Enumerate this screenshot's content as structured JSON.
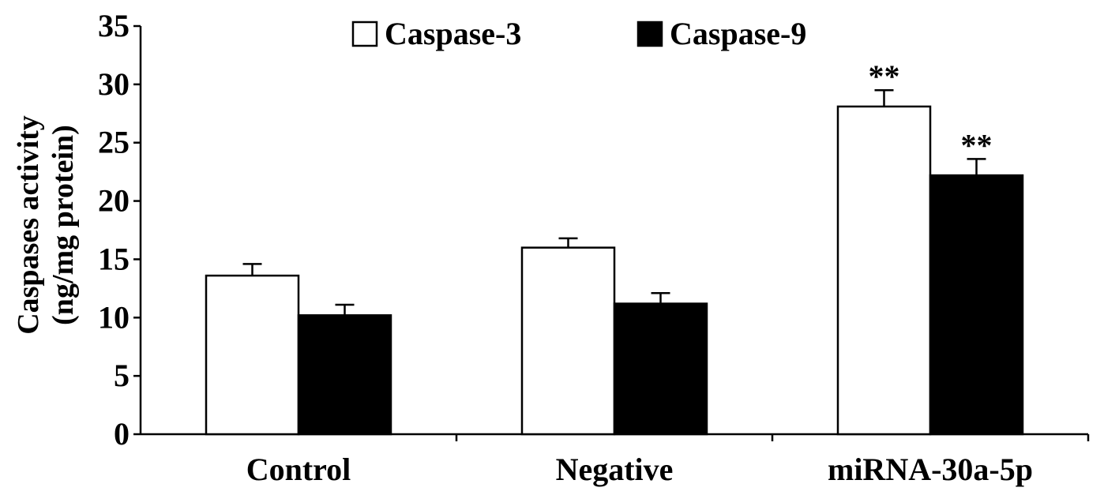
{
  "chart_data": {
    "type": "bar",
    "categories": [
      "Control",
      "Negative",
      "miRNA-30a-5p"
    ],
    "series": [
      {
        "name": "Caspase-3",
        "values": [
          13.6,
          16.0,
          28.1
        ],
        "errors": [
          1.0,
          0.8,
          1.4
        ],
        "color": "#ffffff"
      },
      {
        "name": "Caspase-9",
        "values": [
          10.2,
          11.2,
          22.2
        ],
        "errors": [
          0.9,
          0.9,
          1.4
        ],
        "color": "#000000"
      }
    ],
    "annotations": [
      {
        "category": "miRNA-30a-5p",
        "series": "Caspase-3",
        "text": "**"
      },
      {
        "category": "miRNA-30a-5p",
        "series": "Caspase-9",
        "text": "**"
      }
    ],
    "ylabel_line1": "Caspases activity",
    "ylabel_line2": "(ng/mg protein)",
    "xlabel": "",
    "title": "",
    "ylim": [
      0,
      35
    ],
    "yticks": [
      0,
      5,
      10,
      15,
      20,
      25,
      30,
      35
    ],
    "legend_position": "top-center",
    "grid": false
  }
}
